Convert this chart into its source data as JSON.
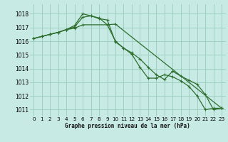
{
  "title": "Graphe pression niveau de la mer (hPa)",
  "bg_color": "#c8eae5",
  "grid_color": "#99ccbb",
  "line_color": "#2d6e2d",
  "xlim": [
    -0.5,
    23.5
  ],
  "ylim": [
    1010.5,
    1018.7
  ],
  "yticks": [
    1011,
    1012,
    1013,
    1014,
    1015,
    1016,
    1017,
    1018
  ],
  "xticks": [
    0,
    1,
    2,
    3,
    4,
    5,
    6,
    7,
    8,
    9,
    10,
    11,
    12,
    13,
    14,
    15,
    16,
    17,
    18,
    19,
    20,
    21,
    22,
    23
  ],
  "series1_x": [
    0,
    1,
    2,
    3,
    4,
    5,
    6,
    7,
    8,
    9,
    10,
    11,
    12,
    13,
    14,
    15,
    16,
    17,
    18,
    19,
    20,
    21,
    22,
    23
  ],
  "series1_y": [
    1016.2,
    1016.35,
    1016.5,
    1016.65,
    1016.85,
    1017.15,
    1018.0,
    1017.85,
    1017.7,
    1017.2,
    1016.0,
    1015.5,
    1015.05,
    1014.1,
    1013.3,
    1013.3,
    1013.55,
    1013.4,
    1013.1,
    1012.7,
    1012.0,
    1011.0,
    1011.1,
    1011.1
  ],
  "series2_x": [
    0,
    1,
    2,
    3,
    4,
    5,
    6,
    7,
    8,
    9,
    10,
    11,
    12,
    13,
    14,
    15,
    16,
    17,
    18,
    19,
    20,
    21,
    22,
    23
  ],
  "series2_y": [
    1016.2,
    1016.35,
    1016.5,
    1016.65,
    1016.85,
    1017.05,
    1017.75,
    1017.85,
    1017.65,
    1017.55,
    1015.95,
    1015.5,
    1015.15,
    1014.7,
    1014.1,
    1013.55,
    1013.2,
    1013.8,
    1013.45,
    1013.15,
    1012.85,
    1012.1,
    1011.0,
    1011.1
  ],
  "series3_x": [
    0,
    1,
    2,
    3,
    4,
    5,
    6,
    9,
    10,
    23
  ],
  "series3_y": [
    1016.2,
    1016.35,
    1016.5,
    1016.65,
    1016.85,
    1016.95,
    1017.2,
    1017.2,
    1017.25,
    1011.1
  ]
}
